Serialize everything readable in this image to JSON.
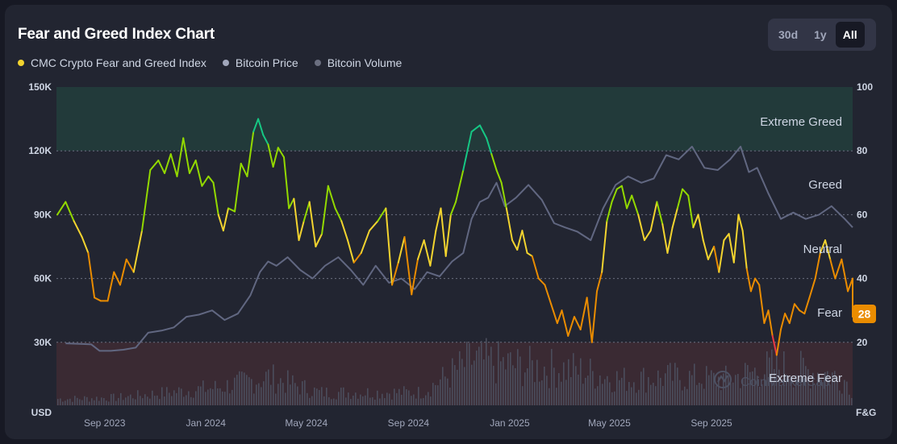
{
  "header": {
    "title": "Fear and Greed Index Chart",
    "ranges": [
      "30d",
      "1y",
      "All"
    ],
    "active_range": "All"
  },
  "legend": {
    "items": [
      {
        "label": "CMC Crypto Fear and Greed Index",
        "color": "#f3d42f"
      },
      {
        "label": "Bitcoin Price",
        "color": "#a1a7bb"
      },
      {
        "label": "Bitcoin Volume",
        "color": "#6b6f80"
      }
    ]
  },
  "colors": {
    "extreme_greed": "#16c784",
    "greed": "#93d900",
    "neutral": "#f3d42f",
    "fear": "#ea8c00",
    "extreme_fear": "#ea3943",
    "price_line": "#616781",
    "volume_bar": "#4a4d5c",
    "badge": "#ea8c00"
  },
  "watermark": "CoinMarketCap",
  "chart_data": {
    "type": "line",
    "title": "Fear and Greed Index Chart",
    "left_axis": {
      "label": "USD",
      "ticks": [
        "150K",
        "120K",
        "90K",
        "60K",
        "30K"
      ],
      "range": [
        0,
        150000
      ]
    },
    "right_axis": {
      "label": "F&G",
      "ticks": [
        "100",
        "80",
        "60",
        "40",
        "20"
      ],
      "range": [
        0,
        100
      ]
    },
    "x_ticks": [
      "Sep 2023",
      "Jan 2024",
      "May 2024",
      "Sep 2024",
      "Jan 2025",
      "May 2025",
      "Sep 2025"
    ],
    "zones": [
      {
        "label": "Extreme Greed",
        "from": 80,
        "to": 100
      },
      {
        "label": "Greed",
        "from": 60,
        "to": 80
      },
      {
        "label": "Neutral",
        "from": 40,
        "to": 60
      },
      {
        "label": "Fear",
        "from": 20,
        "to": 40
      },
      {
        "label": "Extreme Fear",
        "from": 0,
        "to": 20
      }
    ],
    "current_value": "28",
    "series": [
      {
        "name": "CMC Crypto Fear and Greed Index",
        "axis": "right",
        "points": [
          [
            "Jul 2023",
            60
          ],
          [
            "Jul 2023",
            64
          ],
          [
            "Jul 2023",
            58
          ],
          [
            "Aug 2023",
            53
          ],
          [
            "Aug 2023",
            48
          ],
          [
            "Aug 2023",
            34
          ],
          [
            "Aug 2023",
            33
          ],
          [
            "Sep 2023",
            33
          ],
          [
            "Sep 2023",
            42
          ],
          [
            "Sep 2023",
            38
          ],
          [
            "Sep 2023",
            46
          ],
          [
            "Oct 2023",
            42
          ],
          [
            "Oct 2023",
            55
          ],
          [
            "Oct 2023",
            74
          ],
          [
            "Nov 2023",
            77
          ],
          [
            "Nov 2023",
            73
          ],
          [
            "Nov 2023",
            79
          ],
          [
            "Nov 2023",
            72
          ],
          [
            "Dec 2023",
            84
          ],
          [
            "Dec 2023",
            73
          ],
          [
            "Dec 2023",
            77
          ],
          [
            "Dec 2023",
            69
          ],
          [
            "Jan 2024",
            72
          ],
          [
            "Jan 2024",
            70
          ],
          [
            "Jan 2024",
            60
          ],
          [
            "Jan 2024",
            55
          ],
          [
            "Jan 2024",
            62
          ],
          [
            "Feb 2024",
            61
          ],
          [
            "Feb 2024",
            76
          ],
          [
            "Feb 2024",
            72
          ],
          [
            "Feb 2024",
            86
          ],
          [
            "Mar 2024",
            90
          ],
          [
            "Mar 2024",
            85
          ],
          [
            "Mar 2024",
            82
          ],
          [
            "Mar 2024",
            75
          ],
          [
            "Mar 2024",
            81
          ],
          [
            "Apr 2024",
            78
          ],
          [
            "Apr 2024",
            62
          ],
          [
            "Apr 2024",
            65
          ],
          [
            "Apr 2024",
            52
          ],
          [
            "Apr 2024",
            58
          ],
          [
            "May 2024",
            64
          ],
          [
            "May 2024",
            50
          ],
          [
            "May 2024",
            54
          ],
          [
            "May 2024",
            69
          ],
          [
            "Jun 2024",
            62
          ],
          [
            "Jun 2024",
            58
          ],
          [
            "Jun 2024",
            52
          ],
          [
            "Jun 2024",
            45
          ],
          [
            "Jul 2024",
            48
          ],
          [
            "Jul 2024",
            55
          ],
          [
            "Jul 2024",
            58
          ],
          [
            "Aug 2024",
            62
          ],
          [
            "Aug 2024",
            38
          ],
          [
            "Aug 2024",
            45
          ],
          [
            "Aug 2024",
            53
          ],
          [
            "Sep 2024",
            35
          ],
          [
            "Sep 2024",
            46
          ],
          [
            "Sep 2024",
            52
          ],
          [
            "Sep 2024",
            44
          ],
          [
            "Oct 2024",
            55
          ],
          [
            "Oct 2024",
            62
          ],
          [
            "Oct 2024",
            47
          ],
          [
            "Oct 2024",
            60
          ],
          [
            "Oct 2024",
            64
          ],
          [
            "Nov 2024",
            74
          ],
          [
            "Nov 2024",
            86
          ],
          [
            "Nov 2024",
            88
          ],
          [
            "Dec 2024",
            84
          ],
          [
            "Dec 2024",
            79
          ],
          [
            "Dec 2024",
            74
          ],
          [
            "Dec 2024",
            70
          ],
          [
            "Dec 2024",
            62
          ],
          [
            "Jan 2025",
            52
          ],
          [
            "Jan 2025",
            49
          ],
          [
            "Jan 2025",
            55
          ],
          [
            "Jan 2025",
            48
          ],
          [
            "Jan 2025",
            47
          ],
          [
            "Feb 2025",
            40
          ],
          [
            "Feb 2025",
            38
          ],
          [
            "Feb 2025",
            32
          ],
          [
            "Feb 2025",
            26
          ],
          [
            "Mar 2025",
            30
          ],
          [
            "Mar 2025",
            22
          ],
          [
            "Mar 2025",
            28
          ],
          [
            "Mar 2025",
            24
          ],
          [
            "Apr 2025",
            34
          ],
          [
            "Apr 2025",
            20
          ],
          [
            "Apr 2025",
            36
          ],
          [
            "Apr 2025",
            42
          ],
          [
            "Apr 2025",
            58
          ],
          [
            "May 2025",
            64
          ],
          [
            "May 2025",
            68
          ],
          [
            "May 2025",
            69
          ],
          [
            "May 2025",
            62
          ],
          [
            "May 2025",
            66
          ],
          [
            "Jun 2025",
            60
          ],
          [
            "Jun 2025",
            52
          ],
          [
            "Jun 2025",
            55
          ],
          [
            "Jun 2025",
            64
          ],
          [
            "Jul 2025",
            57
          ],
          [
            "Jul 2025",
            48
          ],
          [
            "Jul 2025",
            56
          ],
          [
            "Jul 2025",
            62
          ],
          [
            "Jul 2025",
            68
          ],
          [
            "Aug 2025",
            66
          ],
          [
            "Aug 2025",
            56
          ],
          [
            "Aug 2025",
            60
          ],
          [
            "Aug 2025",
            52
          ],
          [
            "Aug 2025",
            46
          ],
          [
            "Sep 2025",
            50
          ],
          [
            "Sep 2025",
            42
          ],
          [
            "Sep 2025",
            52
          ],
          [
            "Sep 2025",
            54
          ],
          [
            "Sep 2025",
            45
          ],
          [
            "Oct 2025",
            60
          ],
          [
            "Oct 2025",
            55
          ],
          [
            "Oct 2025",
            43
          ],
          [
            "Oct 2025",
            36
          ],
          [
            "Oct 2025",
            40
          ],
          [
            "Oct 2025",
            38
          ],
          [
            "Nov 2025",
            26
          ],
          [
            "Nov 2025",
            30
          ],
          [
            "Nov 2025",
            22
          ],
          [
            "Nov 2025",
            16
          ],
          [
            "Nov 2025",
            24
          ],
          [
            "Nov 2025",
            29
          ],
          [
            "Dec 2025",
            26
          ],
          [
            "Dec 2025",
            32
          ],
          [
            "Dec 2025",
            30
          ],
          [
            "Dec 2025",
            29
          ],
          [
            "Dec 2025",
            34
          ],
          [
            "Jan 2026",
            40
          ],
          [
            "Jan 2026",
            48
          ],
          [
            "Jan 2026",
            52
          ],
          [
            "Jan 2026",
            46
          ],
          [
            "Jan 2026",
            40
          ],
          [
            "Feb 2026",
            46
          ],
          [
            "Feb 2026",
            36
          ],
          [
            "Feb 2026",
            40
          ],
          [
            "Feb 2026",
            28
          ]
        ]
      },
      {
        "name": "Bitcoin Price",
        "axis": "left",
        "points": [
          [
            "Jul 2023",
            29500
          ],
          [
            "Aug 2023",
            29200
          ],
          [
            "Aug 2023",
            29000
          ],
          [
            "Aug 2023",
            26000
          ],
          [
            "Sep 2023",
            26000
          ],
          [
            "Sep 2023",
            26500
          ],
          [
            "Oct 2023",
            27500
          ],
          [
            "Oct 2023",
            34500
          ],
          [
            "Nov 2023",
            35500
          ],
          [
            "Nov 2023",
            37000
          ],
          [
            "Dec 2023",
            42000
          ],
          [
            "Dec 2023",
            43000
          ],
          [
            "Jan 2024",
            45000
          ],
          [
            "Jan 2024",
            40500
          ],
          [
            "Feb 2024",
            43500
          ],
          [
            "Feb 2024",
            52000
          ],
          [
            "Mar 2024",
            63000
          ],
          [
            "Mar 2024",
            68000
          ],
          [
            "Mar 2024",
            66000
          ],
          [
            "Apr 2024",
            70000
          ],
          [
            "Apr 2024",
            64000
          ],
          [
            "May 2024",
            60000
          ],
          [
            "May 2024",
            66000
          ],
          [
            "Jun 2024",
            70000
          ],
          [
            "Jun 2024",
            64000
          ],
          [
            "Jul 2024",
            57000
          ],
          [
            "Jul 2024",
            66000
          ],
          [
            "Aug 2024",
            58000
          ],
          [
            "Aug 2024",
            60000
          ],
          [
            "Sep 2024",
            55000
          ],
          [
            "Sep 2024",
            63000
          ],
          [
            "Oct 2024",
            61000
          ],
          [
            "Oct 2024",
            68000
          ],
          [
            "Nov 2024",
            72000
          ],
          [
            "Nov 2024",
            88000
          ],
          [
            "Nov 2024",
            96000
          ],
          [
            "Dec 2024",
            98000
          ],
          [
            "Dec 2024",
            105000
          ],
          [
            "Dec 2024",
            94000
          ],
          [
            "Jan 2025",
            98000
          ],
          [
            "Jan 2025",
            104000
          ],
          [
            "Feb 2025",
            97000
          ],
          [
            "Feb 2025",
            86000
          ],
          [
            "Mar 2025",
            84000
          ],
          [
            "Mar 2025",
            82000
          ],
          [
            "Apr 2025",
            78000
          ],
          [
            "Apr 2025",
            93000
          ],
          [
            "May 2025",
            104000
          ],
          [
            "May 2025",
            108000
          ],
          [
            "Jun 2025",
            105000
          ],
          [
            "Jun 2025",
            107000
          ],
          [
            "Jul 2025",
            118000
          ],
          [
            "Jul 2025",
            116000
          ],
          [
            "Aug 2025",
            122000
          ],
          [
            "Aug 2025",
            112000
          ],
          [
            "Sep 2025",
            111000
          ],
          [
            "Sep 2025",
            116000
          ],
          [
            "Oct 2025",
            122000
          ],
          [
            "Oct 2025",
            110000
          ],
          [
            "Oct 2025",
            112000
          ],
          [
            "Nov 2025",
            100000
          ],
          [
            "Nov 2025",
            88000
          ],
          [
            "Dec 2025",
            91000
          ],
          [
            "Dec 2025",
            88000
          ],
          [
            "Jan 2026",
            90000
          ],
          [
            "Jan 2026",
            94000
          ],
          [
            "Feb 2026",
            88000
          ],
          [
            "Feb 2026",
            84000
          ]
        ]
      },
      {
        "name": "Bitcoin Volume",
        "axis": "relative",
        "points": [
          [
            "Jul 2023",
            0.05
          ],
          [
            "Sep 2023",
            0.06
          ],
          [
            "Nov 2023",
            0.1
          ],
          [
            "Jan 2024",
            0.14
          ],
          [
            "Mar 2024",
            0.22
          ],
          [
            "May 2024",
            0.1
          ],
          [
            "Jul 2024",
            0.1
          ],
          [
            "Sep 2024",
            0.1
          ],
          [
            "Nov 2024",
            0.35
          ],
          [
            "Jan 2025",
            0.3
          ],
          [
            "Mar 2025",
            0.28
          ],
          [
            "May 2025",
            0.2
          ],
          [
            "Jul 2025",
            0.22
          ],
          [
            "Sep 2025",
            0.2
          ],
          [
            "Nov 2025",
            0.3
          ],
          [
            "Jan 2026",
            0.25
          ],
          [
            "Feb 2026",
            0.18
          ]
        ]
      }
    ]
  }
}
